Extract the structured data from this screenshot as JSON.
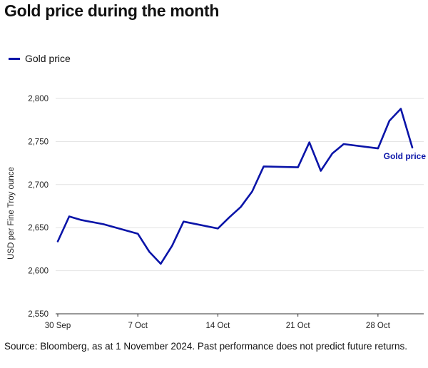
{
  "chart_data": {
    "type": "line",
    "title": "Gold price during the month",
    "ylabel": "USD per Fine Troy ounce",
    "xlabel": "",
    "ylim": [
      2550,
      2800
    ],
    "yticks": [
      2550,
      2600,
      2650,
      2700,
      2750,
      2800
    ],
    "ytick_labels": [
      "2,550",
      "2,600",
      "2,650",
      "2,700",
      "2,750",
      "2,800"
    ],
    "xlim": [
      "2024-09-30",
      "2024-11-01"
    ],
    "xticks": [
      "2024-09-30",
      "2024-10-07",
      "2024-10-14",
      "2024-10-21",
      "2024-10-28"
    ],
    "xtick_labels": [
      "30 Sep",
      "7 Oct",
      "14 Oct",
      "21 Oct",
      "28 Oct"
    ],
    "grid": "horizontal",
    "legend_position": "top-left",
    "series": [
      {
        "name": "Gold price",
        "end_label": "Gold price",
        "color": "#0a14a8",
        "x": [
          "2024-09-30",
          "2024-10-01",
          "2024-10-02",
          "2024-10-04",
          "2024-10-07",
          "2024-10-08",
          "2024-10-09",
          "2024-10-10",
          "2024-10-11",
          "2024-10-14",
          "2024-10-15",
          "2024-10-16",
          "2024-10-17",
          "2024-10-18",
          "2024-10-21",
          "2024-10-22",
          "2024-10-23",
          "2024-10-24",
          "2024-10-25",
          "2024-10-28",
          "2024-10-29",
          "2024-10-30",
          "2024-10-31"
        ],
        "y": [
          2634,
          2663,
          2659,
          2654,
          2643,
          2622,
          2608,
          2629,
          2657,
          2649,
          2662,
          2674,
          2692,
          2721,
          2720,
          2749,
          2716,
          2736,
          2747,
          2742,
          2774,
          2788,
          2743
        ]
      }
    ]
  },
  "legend": {
    "label": "Gold price"
  },
  "source": "Source: Bloomberg, as at 1 November 2024. Past performance does not predict future returns."
}
